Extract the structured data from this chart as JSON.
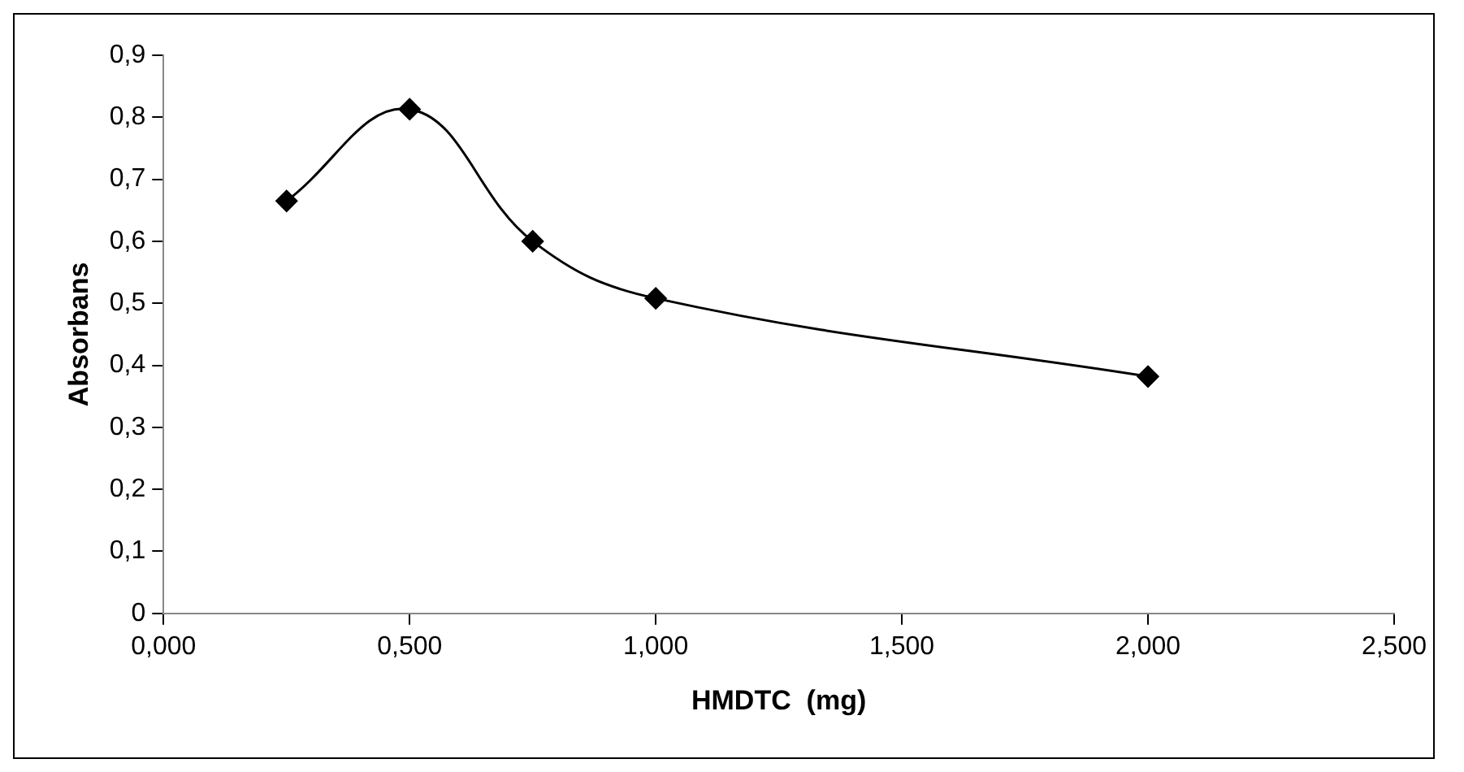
{
  "chart_data": {
    "type": "line",
    "xlabel": "HMDTC  (mg)",
    "ylabel": "Absorbans",
    "x": [
      0.25,
      0.5,
      0.75,
      1.0,
      2.0
    ],
    "series": [
      {
        "color": "#000000",
        "values": [
          0.665,
          0.813,
          0.6,
          0.508,
          0.382
        ]
      }
    ],
    "xlim": [
      0,
      2.5
    ],
    "xticks": [
      {
        "value": 0,
        "label": "0,000"
      },
      {
        "value": 0.5,
        "label": "0,500"
      },
      {
        "value": 1,
        "label": "1,000"
      },
      {
        "value": 1.5,
        "label": "1,500"
      },
      {
        "value": 2,
        "label": "2,000"
      },
      {
        "value": 2.5,
        "label": "2,500"
      }
    ],
    "ylim": [
      0,
      0.9
    ],
    "yticks": [
      0,
      {
        "value": 0.1,
        "label": "0,1"
      },
      {
        "value": 0.2,
        "label": "0,2"
      },
      {
        "value": 0.3,
        "label": "0,3"
      },
      {
        "value": 0.4,
        "label": "0,4"
      },
      {
        "value": 0.5,
        "label": "0,5"
      },
      {
        "value": 0.6,
        "label": "0,6"
      },
      {
        "value": 0.7,
        "label": "0,7"
      },
      {
        "value": 0.8,
        "label": "0,8"
      },
      {
        "value": 0.9,
        "label": "0,9"
      }
    ],
    "grid": false,
    "legend": false,
    "marker": "diamond",
    "line_style": "solid"
  }
}
